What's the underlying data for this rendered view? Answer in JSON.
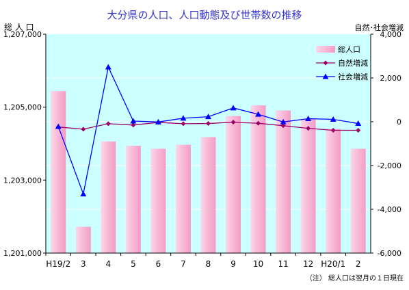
{
  "chart_data": {
    "type": "bar",
    "title": "大分県の人口、人口動態及び世帯数の推移",
    "left_axis_label": "総 人 口",
    "right_axis_label": "自然･社会増減",
    "note": "（注） 総人口は翌月の１日現在",
    "categories": [
      "H19/2",
      "3",
      "4",
      "5",
      "6",
      "7",
      "8",
      "9",
      "10",
      "11",
      "12",
      "H20/1",
      "2"
    ],
    "ylim_left": [
      1201000,
      1207000
    ],
    "yticks_left": [
      1201000,
      1203000,
      1205000,
      1207000
    ],
    "ytick_labels_left": [
      "1,201,000",
      "1,203,000",
      "1,205,000",
      "1,207,000"
    ],
    "ylim_right": [
      -6000,
      4000
    ],
    "yticks_right": [
      -6000,
      -4000,
      -2000,
      0,
      2000,
      4000
    ],
    "ytick_labels_right": [
      "-6,000",
      "-4,000",
      "-2,000",
      "0",
      "2,000",
      "4,000"
    ],
    "legend_position": "top-right",
    "series": [
      {
        "name": "総人口",
        "kind": "bar",
        "axis": "left",
        "color": "#f7b8d6",
        "values": [
          1205440,
          1201720,
          1204060,
          1203940,
          1203860,
          1203970,
          1204180,
          1204760,
          1205050,
          1204910,
          1204680,
          1204400,
          1203860
        ]
      },
      {
        "name": "自然増減",
        "kind": "line",
        "axis": "right",
        "color": "#990066",
        "marker": "diamond",
        "values": [
          -240,
          -340,
          -90,
          -150,
          -30,
          -90,
          -80,
          -20,
          -70,
          -180,
          -300,
          -390,
          -390
        ]
      },
      {
        "name": "社会増減",
        "kind": "line",
        "axis": "right",
        "color": "#0000ff",
        "marker": "triangle",
        "values": [
          -220,
          -3300,
          2500,
          30,
          -10,
          160,
          230,
          630,
          340,
          -10,
          140,
          110,
          -80
        ]
      }
    ]
  }
}
